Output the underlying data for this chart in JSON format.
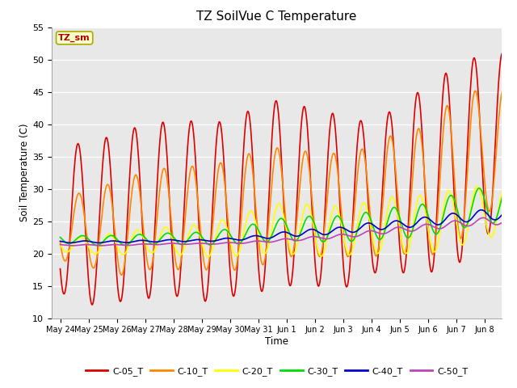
{
  "title": "TZ SoilVue C Temperature",
  "xlabel": "Time",
  "ylabel": "Soil Temperature (C)",
  "ylim": [
    10,
    55
  ],
  "background_color": "#ffffff",
  "plot_bg_color": "#e8e8e8",
  "grid_color": "#ffffff",
  "annotation_label": "TZ_sm",
  "annotation_bg": "#ffffcc",
  "annotation_border": "#aaaa00",
  "x_tick_labels": [
    "May 24",
    "May 25",
    "May 26",
    "May 27",
    "May 28",
    "May 29",
    "May 30",
    "May 31",
    "Jun 1",
    "Jun 2",
    "Jun 3",
    "Jun 4",
    "Jun 5",
    "Jun 6",
    "Jun 7",
    "Jun 8"
  ],
  "series": {
    "C-05_T": {
      "color": "#dd0000",
      "linewidth": 1.2,
      "amplitudes": [
        11.5,
        12.5,
        13.0,
        13.5,
        13.5,
        14.0,
        13.5,
        14.5,
        14.5,
        13.5,
        13.5,
        11.5,
        13.0,
        14.5,
        15.5,
        14.0
      ],
      "means": [
        25.5,
        24.5,
        25.5,
        26.5,
        27.0,
        26.5,
        26.8,
        28.5,
        29.5,
        28.5,
        28.0,
        28.5,
        30.0,
        31.5,
        33.5,
        37.0
      ],
      "phase_shift": 0.38
    },
    "C-10_T": {
      "color": "#ff8800",
      "linewidth": 1.2,
      "amplitudes": [
        5.5,
        5.5,
        7.5,
        7.5,
        8.0,
        8.0,
        8.5,
        9.0,
        8.5,
        8.0,
        8.0,
        8.5,
        9.5,
        10.0,
        11.5,
        9.5
      ],
      "means": [
        24.5,
        23.5,
        24.0,
        25.0,
        25.5,
        25.5,
        25.8,
        27.0,
        28.0,
        27.5,
        27.5,
        28.0,
        29.5,
        29.5,
        33.0,
        36.0
      ],
      "phase_shift": 0.42
    },
    "C-20_T": {
      "color": "#ffff00",
      "linewidth": 1.2,
      "amplitudes": [
        1.2,
        1.2,
        1.8,
        1.8,
        2.2,
        2.5,
        3.0,
        3.5,
        4.0,
        4.0,
        3.8,
        4.0,
        4.5,
        4.5,
        4.5,
        4.0
      ],
      "means": [
        21.5,
        21.2,
        21.5,
        22.0,
        22.0,
        22.0,
        22.5,
        23.5,
        24.0,
        23.5,
        23.5,
        24.0,
        24.5,
        24.5,
        25.5,
        26.5
      ],
      "phase_shift": 0.48
    },
    "C-30_T": {
      "color": "#00dd00",
      "linewidth": 1.2,
      "amplitudes": [
        0.7,
        0.7,
        0.8,
        0.8,
        0.9,
        1.0,
        1.2,
        1.5,
        1.8,
        2.0,
        2.0,
        2.2,
        2.5,
        2.5,
        2.8,
        2.8
      ],
      "means": [
        22.3,
        22.0,
        22.0,
        22.2,
        22.3,
        22.3,
        22.6,
        23.2,
        23.8,
        23.8,
        23.8,
        24.3,
        24.8,
        25.2,
        26.5,
        27.5
      ],
      "phase_shift": 0.55
    },
    "C-40_T": {
      "color": "#0000cc",
      "linewidth": 1.2,
      "amplitudes": [
        0.15,
        0.15,
        0.15,
        0.15,
        0.15,
        0.15,
        0.2,
        0.3,
        0.4,
        0.5,
        0.5,
        0.6,
        0.6,
        0.7,
        0.8,
        0.8
      ],
      "means": [
        21.8,
        21.8,
        21.8,
        21.9,
        22.0,
        22.0,
        22.2,
        22.5,
        23.0,
        23.3,
        23.6,
        24.2,
        24.5,
        25.0,
        25.5,
        26.0
      ],
      "phase_shift": 0.62
    },
    "C-50_T": {
      "color": "#bb44bb",
      "linewidth": 1.2,
      "amplitudes": [
        0.08,
        0.08,
        0.08,
        0.08,
        0.08,
        0.08,
        0.1,
        0.15,
        0.2,
        0.25,
        0.3,
        0.35,
        0.4,
        0.45,
        0.5,
        0.55
      ],
      "means": [
        21.3,
        21.3,
        21.3,
        21.4,
        21.5,
        21.5,
        21.6,
        21.8,
        22.1,
        22.4,
        22.7,
        23.2,
        23.7,
        24.1,
        24.6,
        25.0
      ],
      "phase_shift": 0.68
    }
  }
}
